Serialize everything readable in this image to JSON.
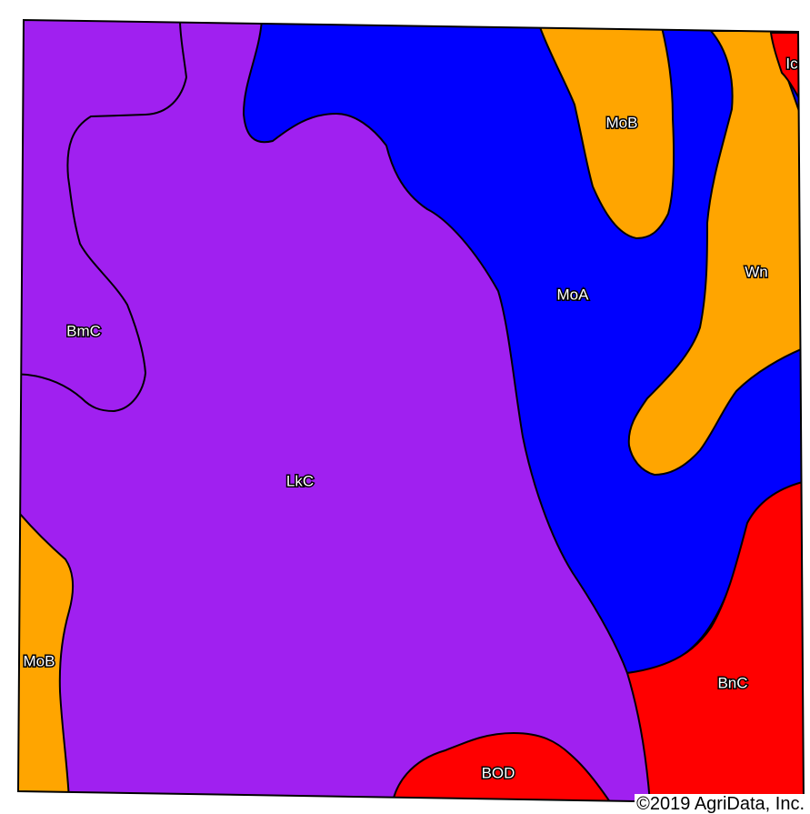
{
  "map": {
    "colors": {
      "purple": "#A020F0",
      "blue": "#0000FF",
      "orange": "#FFA500",
      "red": "#FF0000",
      "outline": "#000000"
    },
    "units": {
      "lkc": "LkC",
      "bmc": "BmC",
      "moa": "MoA",
      "mob_top": "MoB",
      "mob_left": "MoB",
      "wn": "Wn",
      "ic": "Ic",
      "bnc": "BnC",
      "bod": "BOD"
    },
    "copyright": "©2019 AgriData, Inc."
  }
}
